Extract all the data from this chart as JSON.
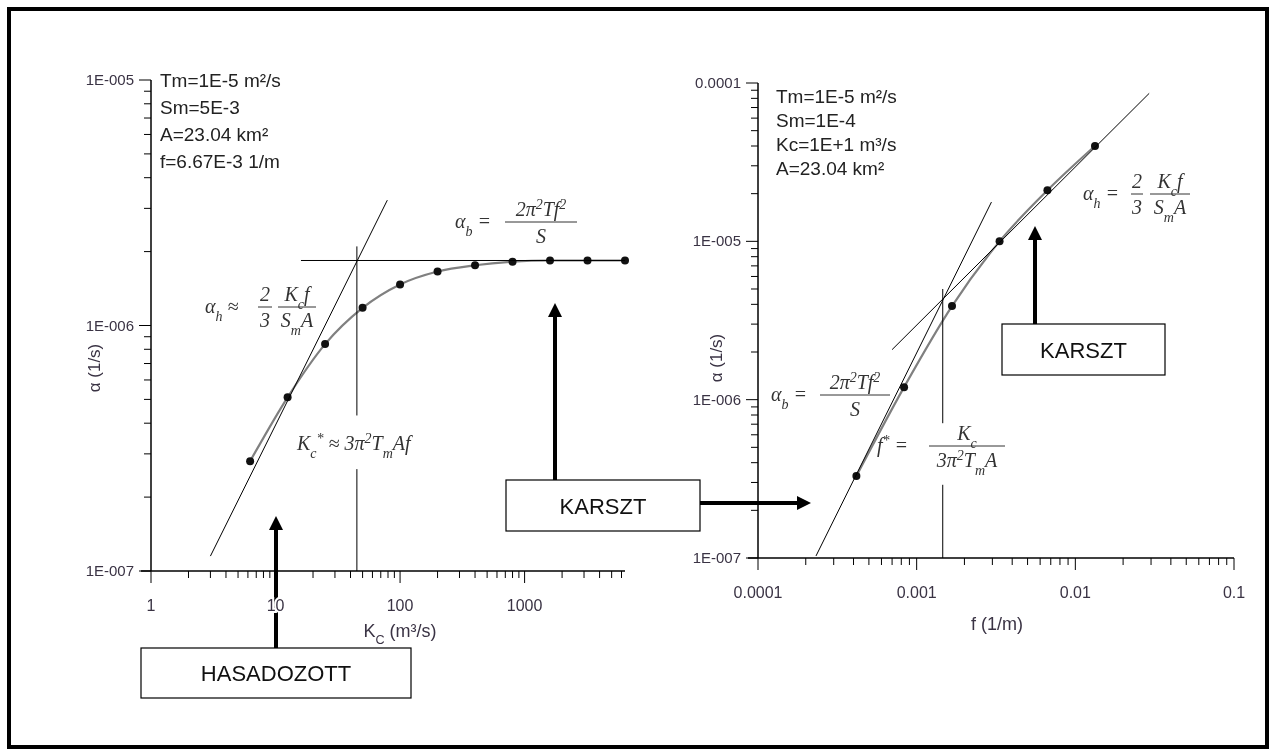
{
  "chart_data": [
    {
      "type": "line",
      "xlabel": "K$_{C}$ (m³/s)",
      "ylabel": "α (1/s)",
      "log": "xy",
      "marker": "circle",
      "xlim": [
        1,
        6400
      ],
      "ylim": [
        1e-07,
        1e-05
      ],
      "xticks": [
        1,
        {
          "value": 2,
          "label": null
        },
        {
          "value": 3,
          "label": null
        },
        {
          "value": 4,
          "label": null
        },
        {
          "value": 5,
          "label": null
        },
        {
          "value": 6,
          "label": null
        },
        {
          "value": 7,
          "label": null
        },
        {
          "value": 8,
          "label": null
        },
        {
          "value": 9,
          "label": null
        },
        10,
        {
          "value": 20,
          "label": null
        },
        {
          "value": 30,
          "label": null
        },
        {
          "value": 40,
          "label": null
        },
        {
          "value": 50,
          "label": null
        },
        {
          "value": 60,
          "label": null
        },
        {
          "value": 70,
          "label": null
        },
        {
          "value": 80,
          "label": null
        },
        {
          "value": 90,
          "label": null
        },
        100,
        {
          "value": 200,
          "label": null
        },
        {
          "value": 300,
          "label": null
        },
        {
          "value": 400,
          "label": null
        },
        {
          "value": 500,
          "label": null
        },
        {
          "value": 600,
          "label": null
        },
        {
          "value": 700,
          "label": null
        },
        {
          "value": 800,
          "label": null
        },
        {
          "value": 900,
          "label": null
        },
        1000,
        {
          "value": 2000,
          "label": null
        },
        {
          "value": 3000,
          "label": null
        },
        {
          "value": 4000,
          "label": null
        },
        {
          "value": 5000,
          "label": null
        },
        {
          "value": 6000,
          "label": null
        }
      ],
      "yticks": [
        {
          "value": 1e-07,
          "label": "1E-007"
        },
        {
          "value": 2e-07,
          "label": null
        },
        {
          "value": 3e-07,
          "label": null
        },
        {
          "value": 4e-07,
          "label": null
        },
        {
          "value": 5e-07,
          "label": null
        },
        {
          "value": 6e-07,
          "label": null
        },
        {
          "value": 7e-07,
          "label": null
        },
        {
          "value": 8e-07,
          "label": null
        },
        {
          "value": 9e-07,
          "label": null
        },
        {
          "value": 1e-06,
          "label": "1E-006"
        },
        {
          "value": 2e-06,
          "label": null
        },
        {
          "value": 3e-06,
          "label": null
        },
        {
          "value": 4e-06,
          "label": null
        },
        {
          "value": 5e-06,
          "label": null
        },
        {
          "value": 6e-06,
          "label": null
        },
        {
          "value": 7e-06,
          "label": null
        },
        {
          "value": 8e-06,
          "label": null
        },
        {
          "value": 9e-06,
          "label": null
        },
        {
          "value": 1e-05,
          "label": "1E-005"
        }
      ],
      "series": [
        {
          "color": "#808080",
          "x": [
            6.25,
            12.5,
            25,
            50,
            100,
            200,
            400,
            800,
            1600,
            3200,
            6400
          ],
          "values": [
            2.8e-07,
            5.1e-07,
            8.4e-07,
            1.18e-06,
            1.47e-06,
            1.66e-06,
            1.76e-06,
            1.82e-06,
            1.84e-06,
            1.84e-06,
            1.84e-06
          ]
        },
        {
          "color": "#000000",
          "marker": "none",
          "x": [
            3,
            79
          ],
          "values": [
            1.15e-07,
            3.24e-06
          ]
        },
        {
          "color": "#000000",
          "marker": "none",
          "x": [
            16,
            6400
          ],
          "values": [
            1.84e-06,
            1.84e-06
          ]
        },
        {
          "color": "#000000",
          "marker": "none",
          "x": [
            45,
            45
          ],
          "values": [
            2.1e-06,
            4.3e-07
          ]
        },
        {
          "color": "#000000",
          "marker": "none",
          "x": [
            45,
            45
          ],
          "values": [
            2.6e-07,
            1e-07
          ]
        }
      ],
      "annotations": [
        "Tm=1E-5 m²/s",
        "Sm=5E-3",
        "A=23.04 km²",
        "f=6.67E-3 1/m",
        "α$_{h}$ ≈",
        "2",
        "K$_{c}$f",
        "3",
        "S$_{m}$A",
        "α$_{b}$ =",
        "2π$^{2}$Tf$^{2}$",
        "S",
        "K$_{c}$$^{*}$ ≈ 3π$^{2}$T$_{m}$Af",
        "KARSZT",
        "HASADOZOTT"
      ]
    },
    {
      "type": "line",
      "xlabel": "f (1/m)",
      "ylabel": "α (1/s)",
      "log": "xy",
      "marker": "circle",
      "xlim": [
        0.0001,
        0.1
      ],
      "ylim": [
        1e-07,
        0.0001
      ],
      "xticks": [
        0.0001,
        {
          "value": 0.0002,
          "label": null
        },
        {
          "value": 0.0003,
          "label": null
        },
        {
          "value": 0.0004,
          "label": null
        },
        {
          "value": 0.0005,
          "label": null
        },
        {
          "value": 0.0006,
          "label": null
        },
        {
          "value": 0.0007,
          "label": null
        },
        {
          "value": 0.0008,
          "label": null
        },
        {
          "value": 0.0009,
          "label": null
        },
        0.001,
        {
          "value": 0.002,
          "label": null
        },
        {
          "value": 0.003,
          "label": null
        },
        {
          "value": 0.004,
          "label": null
        },
        {
          "value": 0.005,
          "label": null
        },
        {
          "value": 0.006,
          "label": null
        },
        {
          "value": 0.007,
          "label": null
        },
        {
          "value": 0.008,
          "label": null
        },
        {
          "value": 0.009,
          "label": null
        },
        0.01,
        {
          "value": 0.02,
          "label": null
        },
        {
          "value": 0.03,
          "label": null
        },
        {
          "value": 0.04,
          "label": null
        },
        {
          "value": 0.05,
          "label": null
        },
        {
          "value": 0.06,
          "label": null
        },
        {
          "value": 0.07,
          "label": null
        },
        {
          "value": 0.08,
          "label": null
        },
        {
          "value": 0.09,
          "label": null
        },
        0.1
      ],
      "yticks": [
        {
          "value": 1e-07,
          "label": "1E-007"
        },
        {
          "value": 2e-07,
          "label": null
        },
        {
          "value": 3e-07,
          "label": null
        },
        {
          "value": 4e-07,
          "label": null
        },
        {
          "value": 5e-07,
          "label": null
        },
        {
          "value": 6e-07,
          "label": null
        },
        {
          "value": 7e-07,
          "label": null
        },
        {
          "value": 8e-07,
          "label": null
        },
        {
          "value": 9e-07,
          "label": null
        },
        {
          "value": 1e-06,
          "label": "1E-006"
        },
        {
          "value": 2e-06,
          "label": null
        },
        {
          "value": 3e-06,
          "label": null
        },
        {
          "value": 4e-06,
          "label": null
        },
        {
          "value": 5e-06,
          "label": null
        },
        {
          "value": 6e-06,
          "label": null
        },
        {
          "value": 7e-06,
          "label": null
        },
        {
          "value": 8e-06,
          "label": null
        },
        {
          "value": 9e-06,
          "label": null
        },
        {
          "value": 1e-05,
          "label": "1E-005"
        },
        {
          "value": 2e-05,
          "label": null
        },
        {
          "value": 3e-05,
          "label": null
        },
        {
          "value": 4e-05,
          "label": null
        },
        {
          "value": 5e-05,
          "label": null
        },
        {
          "value": 6e-05,
          "label": null
        },
        {
          "value": 7e-05,
          "label": null
        },
        {
          "value": 8e-05,
          "label": null
        },
        {
          "value": 9e-05,
          "label": null
        },
        0.0001
      ],
      "series": [
        {
          "color": "#808080",
          "x": [
            0.000417,
            0.000833,
            0.00167,
            0.00333,
            0.00667,
            0.0133
          ],
          "values": [
            3.3e-07,
            1.2e-06,
            3.9e-06,
            1e-05,
            2.1e-05,
            4e-05
          ]
        },
        {
          "color": "#000000",
          "marker": "none",
          "x": [
            0.000232,
            0.00296
          ],
          "values": [
            1.03e-07,
            1.77e-05
          ]
        },
        {
          "color": "#000000",
          "marker": "none",
          "x": [
            0.0007,
            0.0292
          ],
          "values": [
            2.07e-06,
            8.6e-05
          ]
        },
        {
          "color": "#000000",
          "marker": "none",
          "x": [
            0.00146,
            0.00146
          ],
          "values": [
            5e-06,
            7.1e-07
          ]
        },
        {
          "color": "#000000",
          "marker": "none",
          "x": [
            0.00146,
            0.00146
          ],
          "values": [
            2.9e-07,
            1e-07
          ]
        }
      ],
      "annotations": [
        "Tm=1E-5 m²/s",
        "Sm=1E-4",
        "Kc=1E+1 m³/s",
        "A=23.04 km²",
        "α$_{h}$ =",
        "2",
        "K$_{c}$f",
        "3",
        "S$_{m}$A",
        "α$_{b}$ =",
        "2π$^{2}$Tf$^{2}$",
        "S",
        "f$^{*}$ =",
        "K$_{c}$",
        "3π$^{2}$T$_{m}$A",
        "KARSZT"
      ]
    }
  ]
}
